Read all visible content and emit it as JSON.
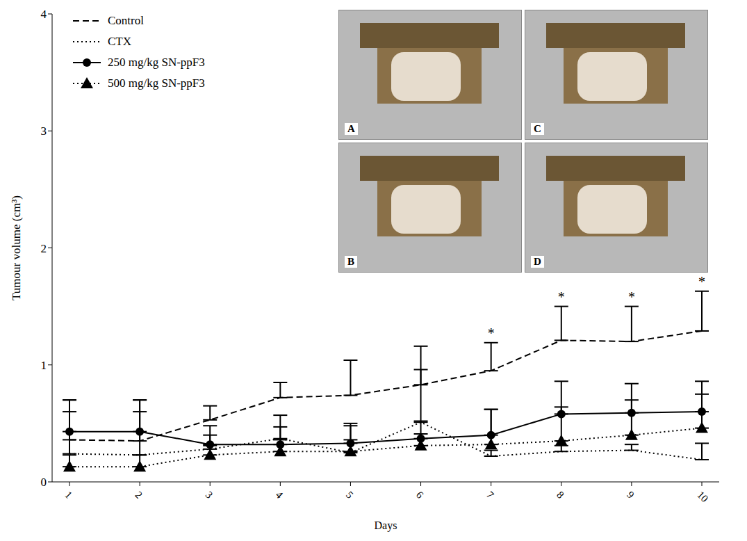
{
  "chart_data": {
    "type": "line",
    "x_label": "Days",
    "y_label": "Tumour volume (cm³)",
    "categories": [
      "1",
      "2",
      "3",
      "4",
      "5",
      "6",
      "7",
      "8",
      "9",
      "10"
    ],
    "ylim": [
      0,
      4
    ],
    "yticks": [
      0,
      1,
      2,
      3,
      4
    ],
    "legend": "top-left",
    "series": [
      {
        "name": "Control",
        "color": "#000000",
        "line_style": "dashed",
        "marker": "none",
        "values": [
          0.36,
          0.35,
          0.53,
          0.72,
          0.74,
          0.83,
          0.95,
          1.21,
          1.2,
          1.29
        ],
        "error": [
          0.34,
          0.35,
          0.12,
          0.13,
          0.3,
          0.33,
          0.24,
          0.29,
          0.3,
          0.34
        ]
      },
      {
        "name": "CTX",
        "color": "#000000",
        "line_style": "dotted",
        "marker": "none",
        "values": [
          0.24,
          0.23,
          0.28,
          0.37,
          0.25,
          0.51,
          0.22,
          0.26,
          0.27,
          0.19
        ],
        "error": [
          0.36,
          0.37,
          0.2,
          0.2,
          0.25,
          0.45,
          0.05,
          0.05,
          0.05,
          0.14
        ]
      },
      {
        "name": "250 mg/kg SN-ppF3",
        "color": "#000000",
        "line_style": "solid",
        "marker": "circle",
        "values": [
          0.43,
          0.43,
          0.32,
          0.32,
          0.33,
          0.37,
          0.4,
          0.58,
          0.59,
          0.6
        ],
        "error": [
          0.27,
          0.27,
          0.08,
          0.15,
          0.15,
          0.15,
          0.22,
          0.28,
          0.25,
          0.26
        ]
      },
      {
        "name": "500 mg/kg SN-ppF3",
        "color": "#000000",
        "line_style": "dotted",
        "marker": "triangle",
        "values": [
          0.13,
          0.13,
          0.23,
          0.26,
          0.26,
          0.31,
          0.32,
          0.35,
          0.4,
          0.46
        ],
        "error": [
          0.1,
          0.1,
          0.08,
          0.1,
          0.1,
          0.1,
          0.3,
          0.29,
          0.3,
          0.29
        ]
      }
    ],
    "annotations": [
      {
        "text": "*",
        "x": "7",
        "y": 1.27
      },
      {
        "text": "*",
        "x": "8",
        "y": 1.58
      },
      {
        "text": "*",
        "x": "9",
        "y": 1.58
      },
      {
        "text": "*",
        "x": "10",
        "y": 1.71
      }
    ],
    "insets": [
      "A",
      "C",
      "B",
      "D"
    ]
  }
}
